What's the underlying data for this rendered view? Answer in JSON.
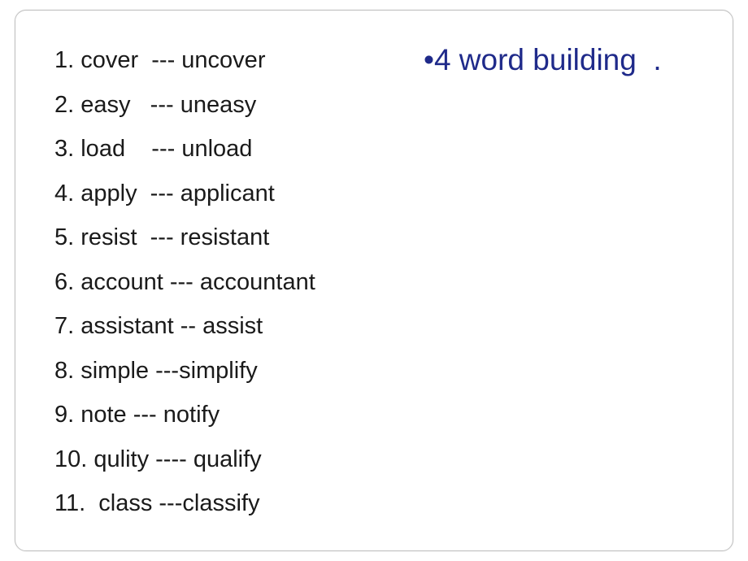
{
  "panel": {
    "border_color": "#c0c0c0",
    "border_radius": 14,
    "background_color": "#ffffff"
  },
  "title": {
    "text": "•4 word building  .",
    "color": "#1f2a8a",
    "fontsize": 37
  },
  "list": {
    "text_color": "#1a1a1a",
    "fontsize": 29,
    "line_height": 54.5,
    "items": [
      "1. cover  --- uncover",
      "2. easy   --- uneasy",
      "3. load    --- unload",
      "4. apply  --- applicant",
      "5. resist  --- resistant",
      "6. account --- accountant",
      "7. assistant -- assist",
      "8. simple ---simplify",
      "9. note --- notify",
      "10. qulity ---- qualify",
      "11.  class ---classify"
    ]
  }
}
